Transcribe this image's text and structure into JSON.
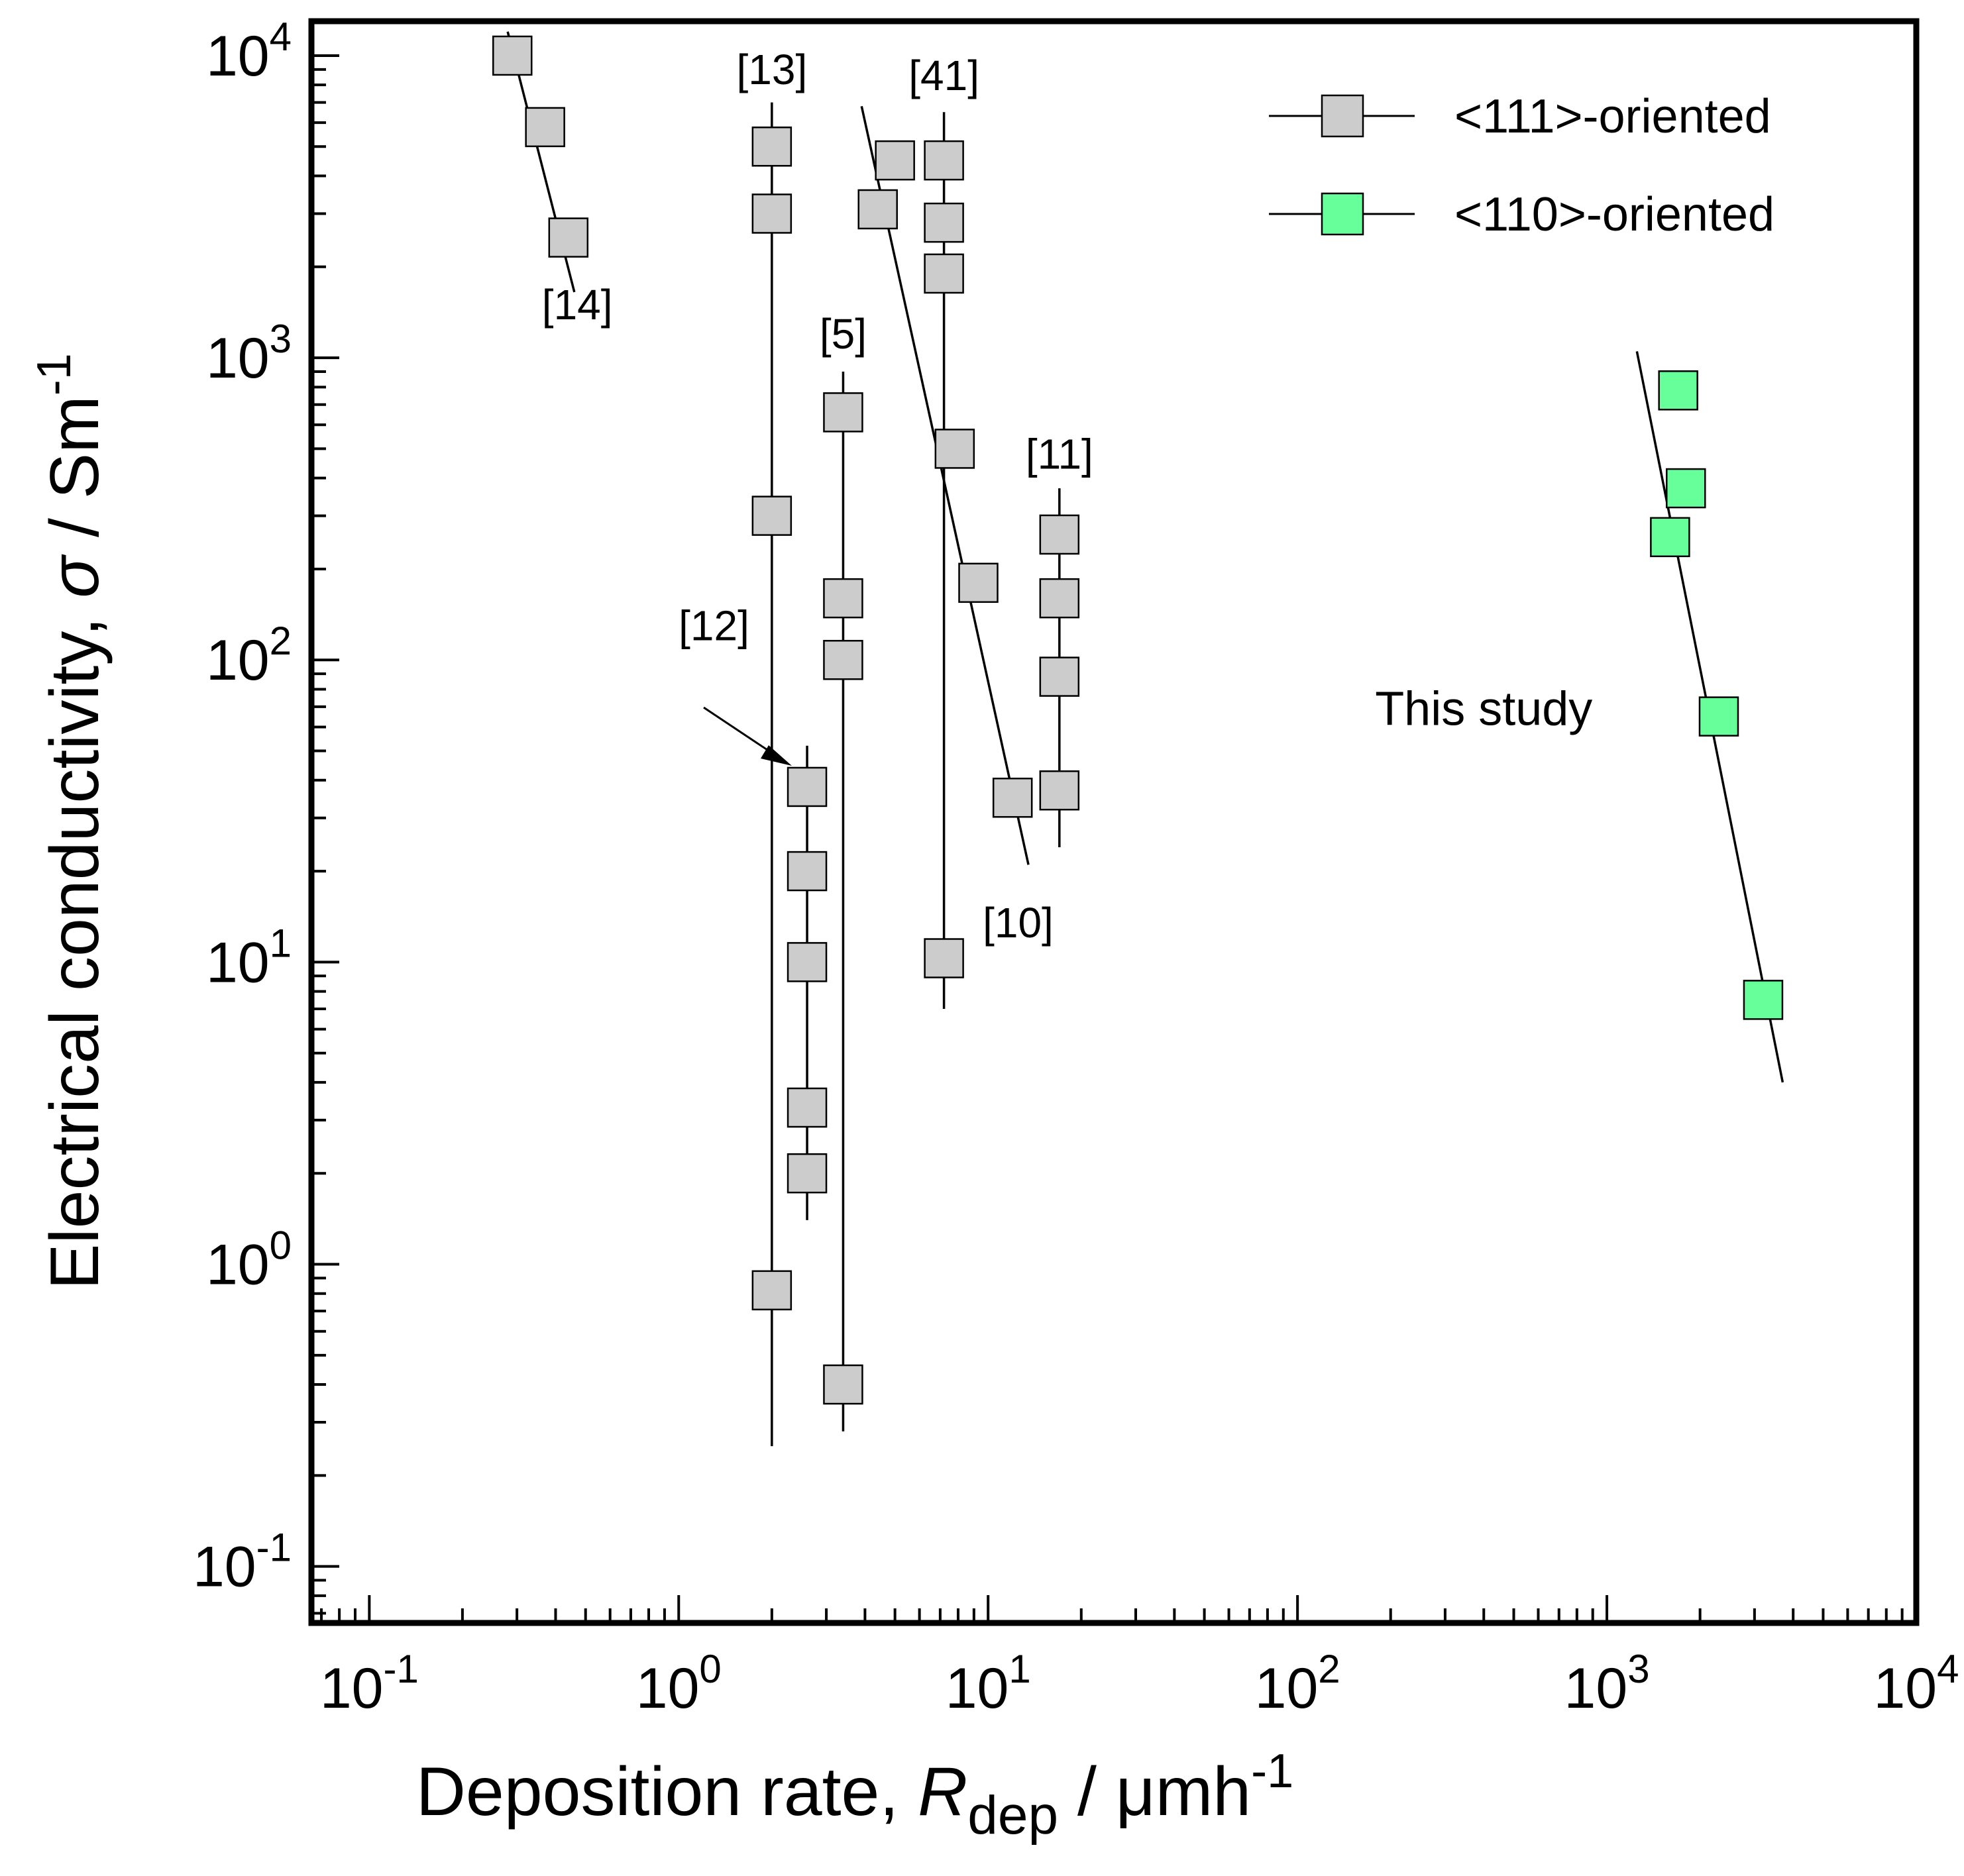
{
  "chart_data": {
    "type": "scatter",
    "xscale": "log",
    "yscale": "log",
    "xlim": [
      0.065,
      10000
    ],
    "ylim": [
      0.065,
      13000
    ],
    "xlabel": {
      "main": "Deposition rate, ",
      "var": "R",
      "sub": "dep",
      "unit": " / μmh",
      "sup": "-1"
    },
    "ylabel": {
      "main": "Electrical conductivity, ",
      "var": "σ",
      "unit": " / Sm",
      "sup": "-1"
    },
    "xticks": [
      {
        "value": 0.1,
        "base": "10",
        "exp": "-1"
      },
      {
        "value": 1,
        "base": "10",
        "exp": "0"
      },
      {
        "value": 10,
        "base": "10",
        "exp": "1"
      },
      {
        "value": 100,
        "base": "10",
        "exp": "2"
      },
      {
        "value": 1000,
        "base": "10",
        "exp": "3"
      },
      {
        "value": 10000,
        "base": "10",
        "exp": "4"
      }
    ],
    "yticks": [
      {
        "value": 0.1,
        "base": "10",
        "exp": "-1"
      },
      {
        "value": 1,
        "base": "10",
        "exp": "0"
      },
      {
        "value": 10,
        "base": "10",
        "exp": "1"
      },
      {
        "value": 100,
        "base": "10",
        "exp": "2"
      },
      {
        "value": 1000,
        "base": "10",
        "exp": "3"
      },
      {
        "value": 10000,
        "base": "10",
        "exp": "4"
      }
    ],
    "legend": [
      {
        "label": "<111>-oriented",
        "color": "#cccccc"
      },
      {
        "label": "<110>-oriented",
        "color": "#66ff99"
      }
    ],
    "series": [
      {
        "name": "[14]",
        "orientation": "<111>",
        "color": "#cccccc",
        "points": [
          {
            "x": 0.29,
            "y": 10000
          },
          {
            "x": 0.37,
            "y": 5800
          },
          {
            "x": 0.44,
            "y": 2500
          }
        ],
        "line": [
          {
            "x": 0.28,
            "y": 12000
          },
          {
            "x": 0.46,
            "y": 1650
          }
        ],
        "label_pos": {
          "x": 0.47,
          "y": 1500
        }
      },
      {
        "name": "[13]",
        "orientation": "<111>",
        "color": "#cccccc",
        "points": [
          {
            "x": 2.0,
            "y": 5000
          },
          {
            "x": 2.0,
            "y": 3000
          },
          {
            "x": 2.0,
            "y": 300
          },
          {
            "x": 2.0,
            "y": 0.82
          }
        ],
        "line": [
          {
            "x": 2.0,
            "y": 7000
          },
          {
            "x": 2.0,
            "y": 0.25
          }
        ],
        "label_pos": {
          "x": 2.0,
          "y": 9000
        }
      },
      {
        "name": "[12]",
        "orientation": "<111>",
        "color": "#cccccc",
        "points": [
          {
            "x": 2.6,
            "y": 38
          },
          {
            "x": 2.6,
            "y": 20
          },
          {
            "x": 2.6,
            "y": 10
          },
          {
            "x": 2.6,
            "y": 3.3
          },
          {
            "x": 2.6,
            "y": 2.0
          }
        ],
        "line": [
          {
            "x": 2.6,
            "y": 52
          },
          {
            "x": 2.6,
            "y": 1.4
          }
        ],
        "label_pos": {
          "x": 1.3,
          "y": 130
        }
      },
      {
        "name": "[5]",
        "orientation": "<111>",
        "color": "#cccccc",
        "points": [
          {
            "x": 3.4,
            "y": 660
          },
          {
            "x": 3.4,
            "y": 160
          },
          {
            "x": 3.4,
            "y": 100
          },
          {
            "x": 3.4,
            "y": 0.4
          }
        ],
        "line": [
          {
            "x": 3.4,
            "y": 900
          },
          {
            "x": 3.4,
            "y": 0.28
          }
        ],
        "label_pos": {
          "x": 3.4,
          "y": 1200
        }
      },
      {
        "name": "[41]",
        "orientation": "<111>",
        "color": "#cccccc",
        "points": [
          {
            "x": 7.2,
            "y": 4500
          },
          {
            "x": 7.2,
            "y": 2800
          },
          {
            "x": 7.2,
            "y": 1900
          },
          {
            "x": 7.2,
            "y": 10.3
          }
        ],
        "line": [
          {
            "x": 7.2,
            "y": 6500
          },
          {
            "x": 7.2,
            "y": 7.0
          }
        ],
        "label_pos": {
          "x": 7.2,
          "y": 8600
        }
      },
      {
        "name": "[10]",
        "orientation": "<111>",
        "color": "#cccccc",
        "points": [
          {
            "x": 5.0,
            "y": 4500
          },
          {
            "x": 4.4,
            "y": 3100
          },
          {
            "x": 7.8,
            "y": 500
          },
          {
            "x": 9.3,
            "y": 180
          },
          {
            "x": 12.0,
            "y": 35
          }
        ],
        "line": [
          {
            "x": 3.9,
            "y": 6800
          },
          {
            "x": 13.5,
            "y": 21
          }
        ],
        "label_pos": {
          "x": 12.5,
          "y": 13.5
        }
      },
      {
        "name": "[11]",
        "orientation": "<111>",
        "color": "#cccccc",
        "points": [
          {
            "x": 17.0,
            "y": 260
          },
          {
            "x": 17.0,
            "y": 160
          },
          {
            "x": 17.0,
            "y": 88
          },
          {
            "x": 17.0,
            "y": 37
          }
        ],
        "line": [
          {
            "x": 17.0,
            "y": 370
          },
          {
            "x": 17.0,
            "y": 24
          }
        ],
        "label_pos": {
          "x": 17.0,
          "y": 480
        }
      },
      {
        "name": "This study",
        "orientation": "<110>",
        "color": "#66ff99",
        "points": [
          {
            "x": 1700,
            "y": 780
          },
          {
            "x": 1800,
            "y": 370
          },
          {
            "x": 1600,
            "y": 255
          },
          {
            "x": 2300,
            "y": 65
          },
          {
            "x": 3200,
            "y": 7.5
          }
        ],
        "line": [
          {
            "x": 1250,
            "y": 1050
          },
          {
            "x": 3700,
            "y": 4.0
          }
        ],
        "label_pos": {
          "x": 400,
          "y": 68
        }
      }
    ],
    "arrow_label": "[12]"
  }
}
